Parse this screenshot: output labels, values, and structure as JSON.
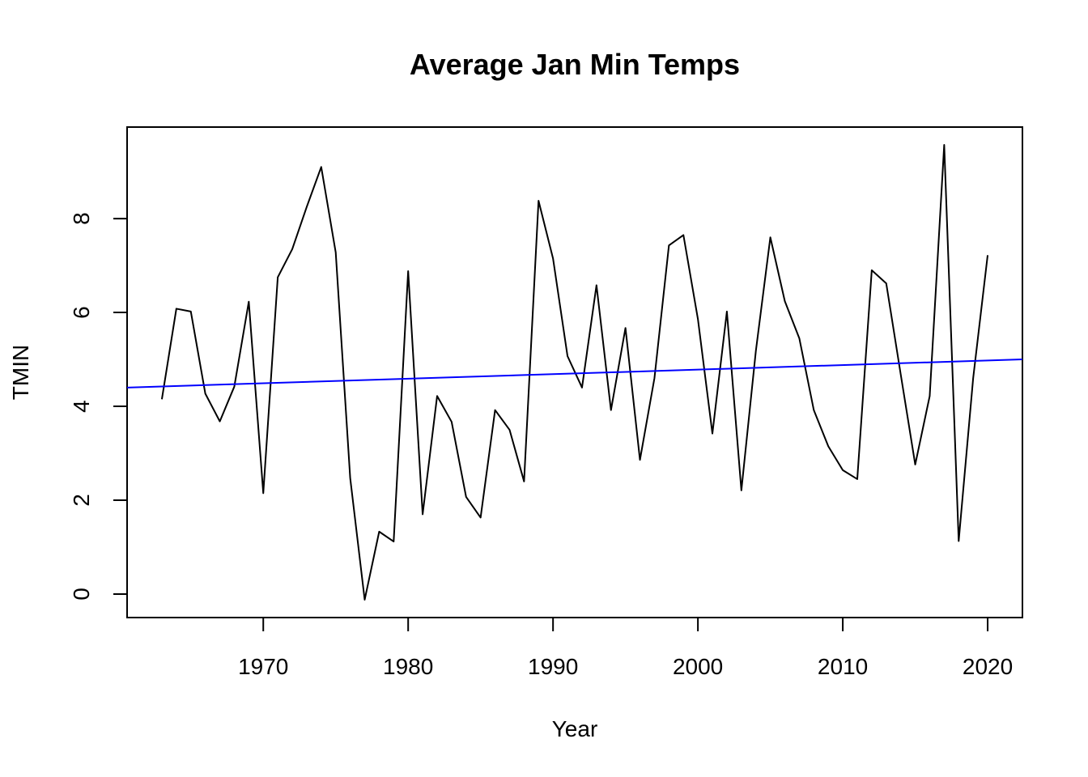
{
  "chart_data": {
    "type": "line",
    "title": "Average Jan Min Temps",
    "xlabel": "Year",
    "ylabel": "TMIN",
    "xlim": [
      1960.6,
      2022.4
    ],
    "ylim": [
      -0.5,
      9.95
    ],
    "x_ticks": [
      1970,
      1980,
      1990,
      2000,
      2010,
      2020
    ],
    "x_tick_labels": [
      "1970",
      "1980",
      "1990",
      "2000",
      "2010",
      "2020"
    ],
    "y_ticks": [
      0,
      2,
      4,
      6,
      8
    ],
    "y_tick_labels": [
      "0",
      "2",
      "4",
      "6",
      "8"
    ],
    "grid": false,
    "legend": "none",
    "series": [
      {
        "color": "#000000",
        "x": [
          1963,
          1964,
          1965,
          1966,
          1967,
          1968,
          1969,
          1970,
          1971,
          1972,
          1973,
          1974,
          1975,
          1976,
          1977,
          1978,
          1979,
          1980,
          1981,
          1982,
          1983,
          1984,
          1985,
          1986,
          1987,
          1988,
          1989,
          1990,
          1991,
          1992,
          1993,
          1994,
          1995,
          1996,
          1997,
          1998,
          1999,
          2000,
          2001,
          2002,
          2003,
          2004,
          2005,
          2006,
          2007,
          2008,
          2009,
          2010,
          2011,
          2012,
          2013,
          2014,
          2015,
          2016,
          2017,
          2018,
          2019,
          2020
        ],
        "values": [
          4.15,
          6.08,
          6.02,
          4.27,
          3.68,
          4.42,
          6.23,
          2.15,
          6.75,
          7.35,
          8.25,
          9.1,
          7.28,
          2.47,
          -0.12,
          1.33,
          1.12,
          6.88,
          1.7,
          4.22,
          3.67,
          2.07,
          1.63,
          3.92,
          3.5,
          2.4,
          8.38,
          7.15,
          5.07,
          4.4,
          6.58,
          3.92,
          5.67,
          2.86,
          4.6,
          7.43,
          7.65,
          5.86,
          3.42,
          6.02,
          2.21,
          5.18,
          7.6,
          6.24,
          5.45,
          3.92,
          3.15,
          2.64,
          2.45,
          6.9,
          6.62,
          4.68,
          2.76,
          4.22,
          9.57,
          1.13,
          4.6,
          7.22
        ]
      },
      {
        "color": "#0000ff",
        "type": "trend",
        "x": [
          1960.6,
          2022.4
        ],
        "values": [
          4.4,
          5.0
        ]
      }
    ]
  }
}
